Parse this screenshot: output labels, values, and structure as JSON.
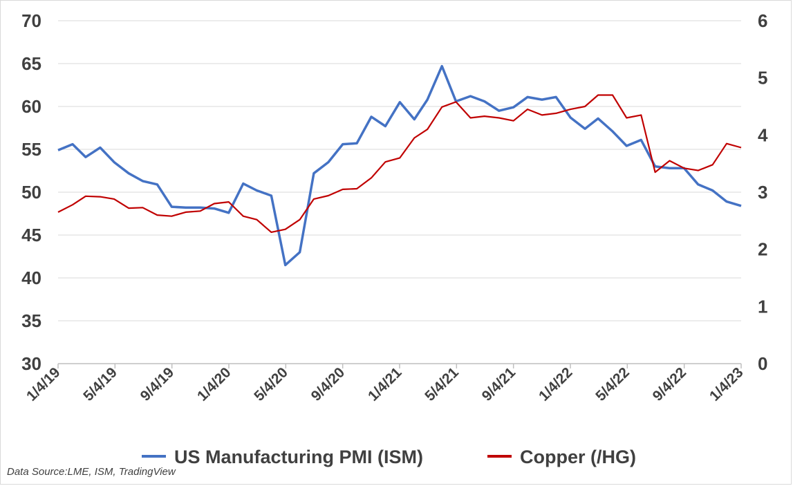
{
  "source_note": "Data Source:LME, ISM, TradingView",
  "chart_data": {
    "type": "line",
    "title": "",
    "x_ticks": [
      "1/4/19",
      "5/4/19",
      "9/4/19",
      "1/4/20",
      "5/4/20",
      "9/4/20",
      "1/4/21",
      "5/4/21",
      "9/4/21",
      "1/4/22",
      "5/4/22",
      "9/4/22",
      "1/4/23"
    ],
    "x_range": [
      "2019-01-04",
      "2023-01-04"
    ],
    "y_left": {
      "min": 30,
      "max": 70,
      "step": 5,
      "ticks": [
        "30",
        "35",
        "40",
        "45",
        "50",
        "55",
        "60",
        "65",
        "70"
      ]
    },
    "y_right": {
      "min": 0,
      "max": 6,
      "step": 1,
      "ticks": [
        "0",
        "1",
        "2",
        "3",
        "4",
        "5",
        "6"
      ]
    },
    "grid": true,
    "legend_position": "bottom",
    "series": [
      {
        "name": "US Manufacturing PMI (ISM)",
        "axis": "left",
        "color": "#4472c4",
        "x": [
          "2019-01-04",
          "2019-02-04",
          "2019-03-04",
          "2019-04-04",
          "2019-05-04",
          "2019-06-04",
          "2019-07-04",
          "2019-08-04",
          "2019-09-04",
          "2019-10-04",
          "2019-11-04",
          "2019-12-04",
          "2020-01-04",
          "2020-02-04",
          "2020-03-04",
          "2020-04-04",
          "2020-05-04",
          "2020-06-04",
          "2020-07-04",
          "2020-08-04",
          "2020-09-04",
          "2020-10-04",
          "2020-11-04",
          "2020-12-04",
          "2021-01-04",
          "2021-02-04",
          "2021-03-04",
          "2021-04-04",
          "2021-05-04",
          "2021-06-04",
          "2021-07-04",
          "2021-08-04",
          "2021-09-04",
          "2021-10-04",
          "2021-11-04",
          "2021-12-04",
          "2022-01-04",
          "2022-02-04",
          "2022-03-04",
          "2022-04-04",
          "2022-05-04",
          "2022-06-04",
          "2022-07-04",
          "2022-08-04",
          "2022-09-04",
          "2022-10-04",
          "2022-11-04",
          "2022-12-04",
          "2023-01-04"
        ],
        "values": [
          54.9,
          55.6,
          54.1,
          55.2,
          53.5,
          52.2,
          51.3,
          50.9,
          48.3,
          48.2,
          48.2,
          48.1,
          47.6,
          51.0,
          50.2,
          49.6,
          41.5,
          43.0,
          52.2,
          53.5,
          55.6,
          55.7,
          58.8,
          57.7,
          60.5,
          58.5,
          60.8,
          64.7,
          60.6,
          61.2,
          60.6,
          59.5,
          59.9,
          61.1,
          60.8,
          61.1,
          58.7,
          57.4,
          58.6,
          57.1,
          55.4,
          56.1,
          53.0,
          52.8,
          52.8,
          50.9,
          50.2,
          48.9,
          48.4
        ]
      },
      {
        "name": "Copper (/HG)",
        "axis": "right",
        "color": "#c00000",
        "x": [
          "2019-01-04",
          "2019-02-04",
          "2019-03-04",
          "2019-04-04",
          "2019-05-04",
          "2019-06-04",
          "2019-07-04",
          "2019-08-04",
          "2019-09-04",
          "2019-10-04",
          "2019-11-04",
          "2019-12-04",
          "2020-01-04",
          "2020-02-04",
          "2020-03-04",
          "2020-04-04",
          "2020-05-04",
          "2020-06-04",
          "2020-07-04",
          "2020-08-04",
          "2020-09-04",
          "2020-10-04",
          "2020-11-04",
          "2020-12-04",
          "2021-01-04",
          "2021-02-04",
          "2021-03-04",
          "2021-04-04",
          "2021-05-04",
          "2021-06-04",
          "2021-07-04",
          "2021-08-04",
          "2021-09-04",
          "2021-10-04",
          "2021-11-04",
          "2021-12-04",
          "2022-01-04",
          "2022-02-04",
          "2022-03-04",
          "2022-04-04",
          "2022-05-04",
          "2022-06-04",
          "2022-07-04",
          "2022-08-04",
          "2022-09-04",
          "2022-10-04",
          "2022-11-04",
          "2022-12-04",
          "2023-01-04"
        ],
        "values": [
          2.65,
          2.78,
          2.93,
          2.92,
          2.88,
          2.72,
          2.73,
          2.6,
          2.58,
          2.65,
          2.67,
          2.8,
          2.83,
          2.58,
          2.52,
          2.3,
          2.35,
          2.52,
          2.88,
          2.94,
          3.05,
          3.06,
          3.25,
          3.53,
          3.6,
          3.95,
          4.1,
          4.49,
          4.58,
          4.3,
          4.33,
          4.3,
          4.25,
          4.45,
          4.35,
          4.38,
          4.45,
          4.5,
          4.7,
          4.7,
          4.3,
          4.35,
          3.35,
          3.55,
          3.42,
          3.38,
          3.48,
          3.85,
          3.78
        ]
      }
    ]
  }
}
